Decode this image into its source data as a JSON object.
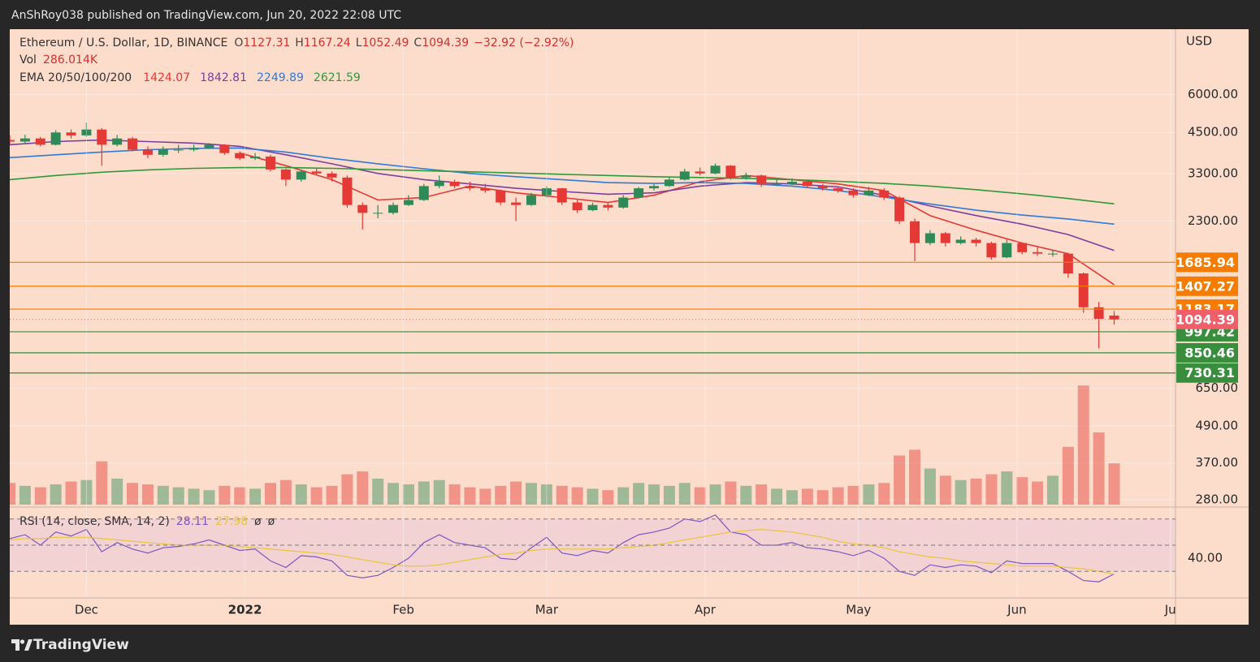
{
  "header": {
    "publisher": "AnShRoy038 published on TradingView.com, Jun 20, 2022 22:08 UTC",
    "brand": "TradingView"
  },
  "chart_data": {
    "type": "candlestick",
    "title": "Ethereum / U.S. Dollar, 1D, BINANCE",
    "legend_labels": [
      "O",
      "H",
      "L",
      "C"
    ],
    "change": "−32.92 (−2.92%)",
    "currency": "USD",
    "log_scale": true,
    "grid": true,
    "up_color": "#2e8b57",
    "down_color": "#e53935",
    "xlim": [
      0,
      228
    ],
    "xticks": [
      {
        "value": 15,
        "label": "Dec"
      },
      {
        "value": 46,
        "label": "2022"
      },
      {
        "value": 77,
        "label": "Feb"
      },
      {
        "value": 105,
        "label": "Mar"
      },
      {
        "value": 136,
        "label": "Apr"
      },
      {
        "value": 166,
        "label": "May"
      },
      {
        "value": 197,
        "label": "Jun"
      },
      {
        "value": 227,
        "label": "Ju"
      }
    ],
    "ylim": [
      270,
      9700
    ],
    "yticks": [
      {
        "value": 6000,
        "label": "6000.00"
      },
      {
        "value": 4500,
        "label": "4500.00"
      },
      {
        "value": 3300,
        "label": "3300.00"
      },
      {
        "value": 2300,
        "label": "2300.00"
      },
      {
        "value": 650,
        "label": "650.00"
      },
      {
        "value": 490,
        "label": "490.00"
      },
      {
        "value": 370,
        "label": "370.00"
      },
      {
        "value": 280,
        "label": "280.00"
      }
    ],
    "x": [
      0,
      3,
      6,
      9,
      12,
      15,
      18,
      21,
      24,
      27,
      30,
      33,
      36,
      39,
      42,
      45,
      48,
      51,
      54,
      57,
      60,
      63,
      66,
      69,
      72,
      75,
      78,
      81,
      84,
      87,
      90,
      93,
      96,
      99,
      102,
      105,
      108,
      111,
      114,
      117,
      120,
      123,
      126,
      129,
      132,
      135,
      138,
      141,
      144,
      147,
      150,
      153,
      156,
      159,
      162,
      165,
      168,
      171,
      174,
      177,
      180,
      183,
      186,
      189,
      192,
      195,
      198,
      201,
      204,
      207,
      210,
      213,
      216
    ],
    "open": [
      4250,
      4200,
      4300,
      4100,
      4500,
      4400,
      4600,
      4100,
      4300,
      3950,
      3800,
      3950,
      3950,
      4000,
      4100,
      3850,
      3700,
      3750,
      3400,
      3150,
      3350,
      3300,
      3200,
      2600,
      2450,
      2450,
      2600,
      2700,
      3000,
      3100,
      3000,
      2950,
      2900,
      2650,
      2600,
      2800,
      2950,
      2650,
      2500,
      2600,
      2550,
      2750,
      2950,
      3000,
      3150,
      3350,
      3300,
      3500,
      3200,
      3250,
      3050,
      3050,
      3100,
      3000,
      2950,
      2900,
      2800,
      2900,
      2750,
      2300,
      1950,
      2100,
      1950,
      2000,
      1950,
      1750,
      1950,
      1820,
      1800,
      1800,
      1550,
      1200,
      1127.31
    ],
    "high": [
      4400,
      4420,
      4350,
      4580,
      4600,
      4850,
      4650,
      4420,
      4350,
      4050,
      4050,
      4100,
      4100,
      4150,
      4120,
      3900,
      3850,
      3800,
      3420,
      3400,
      3420,
      3350,
      3250,
      2650,
      2600,
      2650,
      2800,
      3050,
      3250,
      3150,
      3100,
      3050,
      2920,
      2750,
      2850,
      3000,
      2960,
      2700,
      2650,
      2650,
      2800,
      2980,
      3050,
      3200,
      3420,
      3450,
      3560,
      3520,
      3320,
      3270,
      3150,
      3180,
      3130,
      3050,
      3000,
      2950,
      2980,
      2950,
      2780,
      2350,
      2150,
      2120,
      2050,
      2030,
      1970,
      2000,
      1960,
      1900,
      1850,
      1810,
      1560,
      1250,
      1167.24
    ],
    "low": [
      4120,
      4150,
      4050,
      4080,
      4300,
      4350,
      3500,
      4050,
      3900,
      3700,
      3750,
      3850,
      3900,
      3980,
      3800,
      3650,
      3650,
      3350,
      3000,
      3100,
      3250,
      3100,
      2550,
      2160,
      2350,
      2420,
      2580,
      2680,
      2950,
      2950,
      2900,
      2850,
      2600,
      2300,
      2580,
      2750,
      2600,
      2450,
      2480,
      2500,
      2530,
      2730,
      2900,
      2980,
      3130,
      3250,
      3280,
      3150,
      3150,
      2980,
      3000,
      3020,
      2950,
      2900,
      2850,
      2750,
      2780,
      2700,
      2250,
      1700,
      1920,
      1900,
      1930,
      1900,
      1720,
      1740,
      1790,
      1770,
      1760,
      1500,
      1150,
      880,
      1052.49
    ],
    "close": [
      4200,
      4300,
      4100,
      4500,
      4400,
      4600,
      4100,
      4300,
      3950,
      3800,
      3950,
      3950,
      4000,
      4100,
      3850,
      3700,
      3750,
      3400,
      3150,
      3350,
      3300,
      3200,
      2600,
      2450,
      2450,
      2600,
      2700,
      3000,
      3100,
      3000,
      2950,
      2900,
      2650,
      2600,
      2800,
      2950,
      2650,
      2500,
      2600,
      2550,
      2750,
      2950,
      3000,
      3150,
      3350,
      3300,
      3500,
      3200,
      3250,
      3050,
      3050,
      3100,
      3000,
      2950,
      2900,
      2800,
      2900,
      2750,
      2300,
      1950,
      2100,
      1950,
      2000,
      1950,
      1750,
      1950,
      1820,
      1800,
      1800,
      1550,
      1200,
      1100,
      1094.39
    ],
    "volume": {
      "label": "Vol",
      "legend_value": "286.014K",
      "ylim": [
        0,
        1000
      ],
      "values": [
        150,
        130,
        120,
        140,
        160,
        170,
        300,
        180,
        150,
        140,
        130,
        120,
        110,
        100,
        130,
        120,
        110,
        150,
        170,
        140,
        120,
        130,
        210,
        230,
        180,
        150,
        140,
        160,
        170,
        140,
        120,
        110,
        130,
        160,
        150,
        140,
        130,
        120,
        110,
        100,
        120,
        150,
        140,
        130,
        150,
        120,
        140,
        160,
        130,
        140,
        110,
        100,
        110,
        100,
        120,
        130,
        140,
        150,
        340,
        380,
        250,
        200,
        170,
        180,
        210,
        230,
        190,
        160,
        200,
        400,
        825,
        500,
        286.014
      ]
    },
    "ema": {
      "label": "EMA 20/50/100/200",
      "x": [
        0,
        9,
        18,
        27,
        36,
        45,
        54,
        63,
        72,
        81,
        90,
        99,
        108,
        117,
        126,
        135,
        144,
        153,
        162,
        171,
        180,
        189,
        198,
        207,
        216
      ],
      "series": [
        {
          "color": "#e53935",
          "values": [
            null,
            null,
            null,
            null,
            null,
            3850,
            3500,
            3150,
            2700,
            2750,
            3000,
            2850,
            2750,
            2650,
            2800,
            3100,
            3250,
            3150,
            3050,
            2900,
            2400,
            2150,
            1950,
            1800,
            1424.07
          ]
        },
        {
          "color": "#7b3fa0",
          "values": [
            4100,
            4200,
            4250,
            4200,
            4150,
            4050,
            3800,
            3550,
            3300,
            3150,
            3050,
            2950,
            2880,
            2820,
            2850,
            3000,
            3080,
            3050,
            2980,
            2800,
            2580,
            2400,
            2250,
            2080,
            1842.81
          ]
        },
        {
          "color": "#2f7bd8",
          "values": [
            3720,
            3800,
            3880,
            3950,
            3990,
            4000,
            3880,
            3700,
            3550,
            3420,
            3300,
            3220,
            3150,
            3080,
            3060,
            3080,
            3060,
            3000,
            2900,
            2760,
            2620,
            2500,
            2410,
            2340,
            2249.89
          ]
        },
        {
          "color": "#2e9a3a",
          "values": [
            3150,
            3250,
            3330,
            3390,
            3430,
            3450,
            3450,
            3430,
            3400,
            3370,
            3340,
            3310,
            3280,
            3250,
            3220,
            3200,
            3180,
            3150,
            3110,
            3060,
            3000,
            2920,
            2830,
            2730,
            2621.59
          ]
        }
      ]
    },
    "levels": [
      {
        "value": 1685.94,
        "color": "#f57c00"
      },
      {
        "value": 1407.27,
        "color": "#f57c00"
      },
      {
        "value": 1183.17,
        "color": "#f57c00"
      },
      {
        "value": 997.42,
        "color": "#388e3c"
      },
      {
        "value": 850.46,
        "color": "#388e3c"
      },
      {
        "value": 730.31,
        "color": "#388e3c"
      }
    ],
    "last_price_color": "#ef5f6a",
    "rsi": {
      "title": "RSI (14, close, SMA, 14, 2)",
      "ylim": [
        11,
        76
      ],
      "upper": 70,
      "middle": 50,
      "lower": 30,
      "yticks": [
        {
          "value": 40,
          "label": "40.00"
        }
      ],
      "na_values": [
        "ø",
        "ø"
      ],
      "color": "#7e57c2",
      "sma_color": "#e8c53a",
      "values": [
        55,
        58,
        50,
        60,
        57,
        62,
        45,
        52,
        47,
        44,
        48,
        49,
        51,
        54,
        50,
        46,
        47,
        38,
        33,
        42,
        41,
        38,
        27,
        25,
        27,
        33,
        40,
        52,
        58,
        52,
        50,
        48,
        40,
        39,
        48,
        56,
        44,
        42,
        46,
        44,
        52,
        58,
        60,
        63,
        70,
        68,
        73,
        60,
        58,
        50,
        50,
        52,
        48,
        47,
        45,
        42,
        46,
        40,
        30,
        27,
        35,
        33,
        35,
        34,
        29,
        38,
        36,
        36,
        36,
        30,
        23,
        22,
        28.11
      ],
      "sma": [
        54,
        55,
        55,
        56,
        56,
        56,
        55,
        54,
        53,
        52,
        51,
        50,
        50,
        50,
        50,
        49,
        48,
        47,
        46,
        45,
        44,
        43,
        41,
        39,
        37,
        35,
        34,
        34,
        35,
        37,
        39,
        41,
        43,
        44,
        46,
        47,
        47,
        47,
        47,
        47,
        48,
        49,
        50,
        52,
        54,
        56,
        58,
        60,
        61,
        62,
        61,
        60,
        58,
        56,
        53,
        51,
        50,
        48,
        45,
        43,
        41,
        40,
        38,
        37,
        36,
        35,
        34,
        34,
        34,
        33,
        32,
        30,
        27.98
      ]
    }
  }
}
